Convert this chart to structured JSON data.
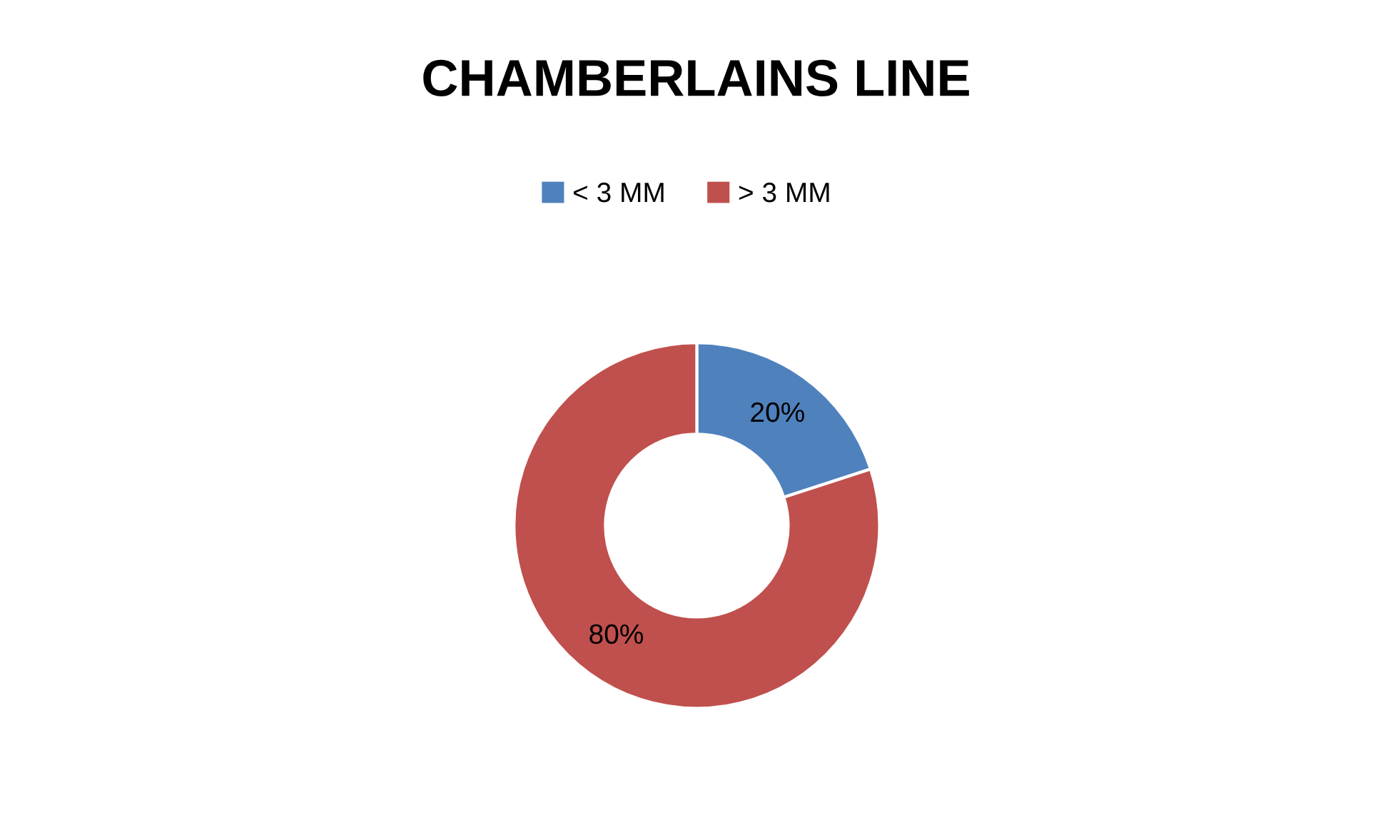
{
  "chart_data": {
    "type": "donut",
    "title": "CHAMBERLAINS LINE",
    "categories": [
      "< 3 MM",
      "> 3 MM"
    ],
    "values": [
      20,
      80
    ],
    "colors": [
      "#4f81bd",
      "#c0504d"
    ],
    "value_labels": [
      "20%",
      "80%"
    ],
    "legend": "top"
  }
}
